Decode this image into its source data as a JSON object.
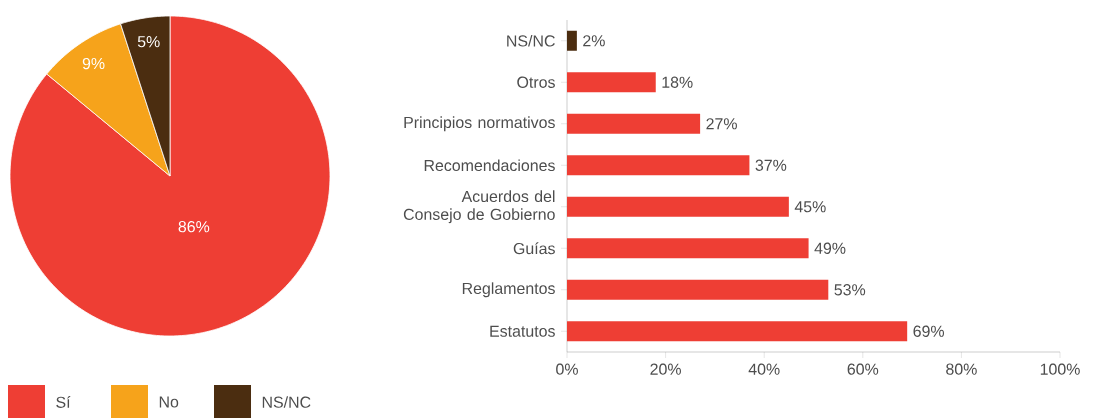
{
  "chart_data": [
    {
      "type": "pie",
      "categories": [
        "Sí",
        "No",
        "NS/NC"
      ],
      "values": [
        86,
        9,
        5
      ],
      "colors": [
        "#ee3e34",
        "#f6a31b",
        "#4b2d10"
      ],
      "value_labels": [
        "86%",
        "9%",
        "5%"
      ],
      "legend": "bottom"
    },
    {
      "type": "bar",
      "orientation": "horizontal",
      "categories": [
        "NS/NC",
        "Otros",
        "Principios normativos",
        "Recomendaciones",
        "Acuerdos del Consejo de Gobierno",
        "Guías",
        "Reglamentos",
        "Estatutos"
      ],
      "values": [
        2,
        18,
        27,
        37,
        45,
        49,
        53,
        69
      ],
      "colors": [
        "#4b2d10",
        "#ee3e34",
        "#ee3e34",
        "#ee3e34",
        "#ee3e34",
        "#ee3e34",
        "#ee3e34",
        "#ee3e34"
      ],
      "value_labels": [
        "2%",
        "18%",
        "27%",
        "37%",
        "45%",
        "49%",
        "53%",
        "69%"
      ],
      "xlim": [
        0,
        100
      ],
      "xticks": [
        {
          "value": 0,
          "label": "0%"
        },
        {
          "value": 20,
          "label": "20%"
        },
        {
          "value": 40,
          "label": "40%"
        },
        {
          "value": 60,
          "label": "60%"
        },
        {
          "value": 80,
          "label": "80%"
        },
        {
          "value": 100,
          "label": "100%"
        }
      ]
    }
  ]
}
